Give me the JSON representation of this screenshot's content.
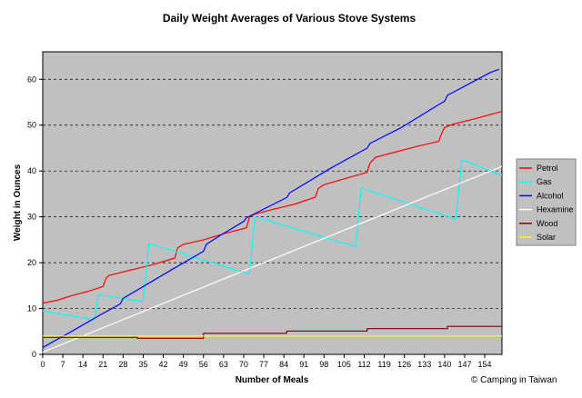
{
  "chart_data": {
    "type": "line",
    "title": "Daily Weight Averages of Various Stove Systems",
    "xlabel": "Number of Meals",
    "ylabel": "Weight in Ounces",
    "credit": "© Camping in Taiwan",
    "xlim": [
      0,
      160
    ],
    "ylim": [
      0,
      66
    ],
    "xticks": [
      0,
      7,
      14,
      21,
      28,
      35,
      42,
      49,
      56,
      63,
      70,
      77,
      84,
      91,
      98,
      105,
      112,
      119,
      126,
      133,
      140,
      147,
      154
    ],
    "yticks": [
      0,
      10,
      20,
      30,
      40,
      50,
      60
    ],
    "grid": true,
    "legend_position": "right",
    "background_color": "#c0c0c0",
    "series": [
      {
        "name": "Petrol",
        "color": "#ff0000",
        "points": [
          [
            0,
            11.2
          ],
          [
            5,
            11.8
          ],
          [
            10,
            12.8
          ],
          [
            16,
            13.8
          ],
          [
            21,
            14.8
          ],
          [
            22,
            16.5
          ],
          [
            23,
            17.2
          ],
          [
            30,
            18.3
          ],
          [
            38,
            19.5
          ],
          [
            46,
            21
          ],
          [
            47,
            23.2
          ],
          [
            49,
            24
          ],
          [
            56,
            25
          ],
          [
            63,
            26.3
          ],
          [
            71,
            27.6
          ],
          [
            72,
            30
          ],
          [
            74,
            30.6
          ],
          [
            80,
            31.6
          ],
          [
            88,
            32.8
          ],
          [
            95,
            34.3
          ],
          [
            96,
            36.2
          ],
          [
            98,
            37
          ],
          [
            105,
            38.3
          ],
          [
            113,
            39.7
          ],
          [
            114,
            41.7
          ],
          [
            116,
            43
          ],
          [
            122,
            44
          ],
          [
            130,
            45.3
          ],
          [
            138,
            46.5
          ],
          [
            139,
            48.2
          ],
          [
            140,
            49.5
          ],
          [
            143,
            50.2
          ],
          [
            150,
            51.3
          ],
          [
            160,
            53
          ]
        ]
      },
      {
        "name": "Gas",
        "color": "#00ffff",
        "points": [
          [
            0,
            9.5
          ],
          [
            18,
            7.5
          ],
          [
            19.5,
            13
          ],
          [
            35,
            11.5
          ],
          [
            37,
            24.2
          ],
          [
            72,
            17.5
          ],
          [
            74,
            30
          ],
          [
            109,
            23.5
          ],
          [
            111,
            36.3
          ],
          [
            144,
            29.5
          ],
          [
            146,
            42.5
          ],
          [
            160,
            39
          ]
        ]
      },
      {
        "name": "Alcohol",
        "color": "#0000ff",
        "points": [
          [
            0,
            1.5
          ],
          [
            10,
            5
          ],
          [
            20,
            8.6
          ],
          [
            27,
            11
          ],
          [
            28,
            12.2
          ],
          [
            35,
            14.8
          ],
          [
            45,
            18.5
          ],
          [
            56,
            22.5
          ],
          [
            57,
            24
          ],
          [
            62,
            26
          ],
          [
            70,
            29
          ],
          [
            71,
            29.8
          ],
          [
            78,
            32
          ],
          [
            85,
            34.2
          ],
          [
            86,
            35.2
          ],
          [
            100,
            40.5
          ],
          [
            113,
            45
          ],
          [
            114,
            46
          ],
          [
            125,
            49.5
          ],
          [
            138,
            54.5
          ],
          [
            140,
            55.2
          ],
          [
            141,
            56.5
          ],
          [
            144,
            57.5
          ],
          [
            150,
            59.5
          ],
          [
            156,
            61.5
          ],
          [
            159,
            62.2
          ]
        ]
      },
      {
        "name": "Hexamine",
        "color": "#ffffff",
        "points": [
          [
            0,
            0.5
          ],
          [
            160,
            41
          ]
        ]
      },
      {
        "name": "Wood",
        "color": "#800000",
        "points": [
          [
            0,
            3.7
          ],
          [
            33,
            3.7
          ],
          [
            33,
            3.5
          ],
          [
            56,
            3.5
          ],
          [
            56,
            4.6
          ],
          [
            85,
            4.6
          ],
          [
            85,
            5.1
          ],
          [
            113,
            5.1
          ],
          [
            113,
            5.6
          ],
          [
            141,
            5.6
          ],
          [
            141,
            6.1
          ],
          [
            160,
            6.1
          ]
        ]
      },
      {
        "name": "Solar",
        "color": "#ffff00",
        "points": [
          [
            0,
            4
          ],
          [
            160,
            4
          ]
        ]
      }
    ]
  }
}
